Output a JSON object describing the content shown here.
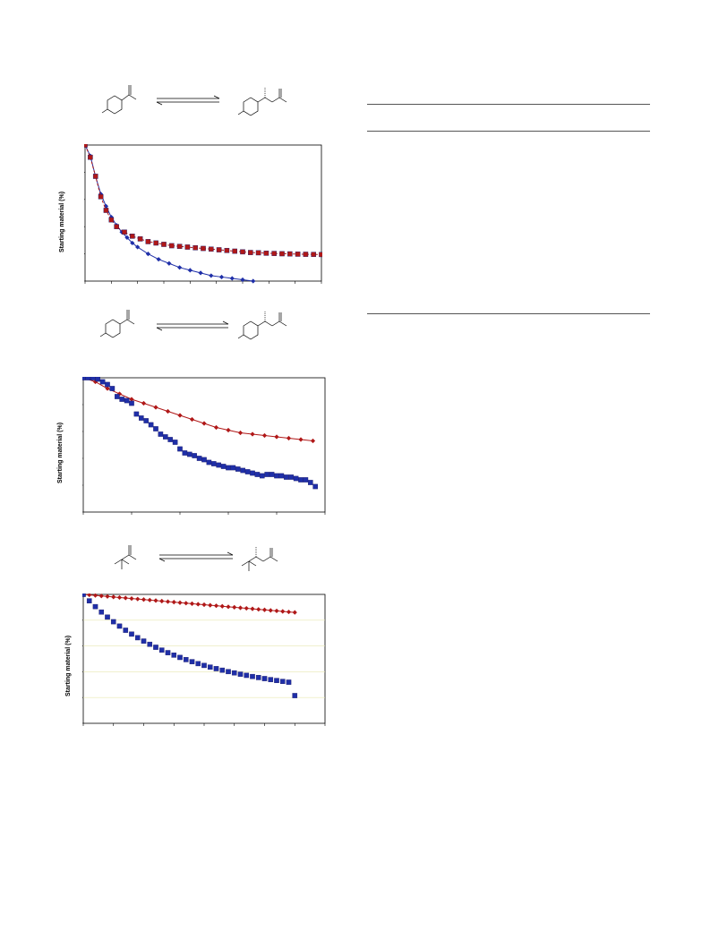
{
  "charts": [
    {
      "ylabel": "Starting material (%)"
    },
    {
      "ylabel": "Starting material (%)"
    },
    {
      "ylabel": "Starting material (%)"
    }
  ],
  "chart_data": [
    {
      "type": "line",
      "ylabel": "Starting material (%)",
      "xlim": [
        0,
        9
      ],
      "ylim": [
        0,
        100
      ],
      "grid": false,
      "series": [
        {
          "color": "#1f2fa8",
          "marker": "diamond",
          "line": "solid",
          "x": [
            0,
            0.2,
            0.4,
            0.6,
            0.8,
            1,
            1.2,
            1.4,
            1.6,
            1.8,
            2,
            2.4,
            2.8,
            3.2,
            3.6,
            4,
            4.4,
            4.8,
            5.2,
            5.6,
            6,
            6.4
          ],
          "y": [
            100,
            92,
            77,
            64,
            55,
            47,
            41,
            36,
            32,
            28,
            25,
            20,
            16,
            13,
            10,
            8,
            6,
            4,
            3,
            2,
            1,
            0
          ]
        },
        {
          "color": "#b01818",
          "marker": "square",
          "line": "dashed",
          "x": [
            0,
            0.2,
            0.4,
            0.6,
            0.8,
            1,
            1.2,
            1.5,
            1.8,
            2.1,
            2.4,
            2.7,
            3,
            3.3,
            3.6,
            3.9,
            4.2,
            4.5,
            4.8,
            5.1,
            5.4,
            5.7,
            6,
            6.3,
            6.6,
            6.9,
            7.2,
            7.5,
            7.8,
            8.1,
            8.4,
            8.7,
            9
          ],
          "y": [
            100,
            91,
            77,
            62,
            52,
            45,
            40,
            36,
            33,
            31,
            29,
            28,
            27,
            26,
            25.5,
            25,
            24.5,
            24,
            23.5,
            23,
            22.5,
            22,
            21.5,
            21,
            20.8,
            20.5,
            20.3,
            20.1,
            20,
            19.8,
            19.7,
            19.6,
            19.5
          ]
        }
      ]
    },
    {
      "type": "line",
      "ylabel": "Starting material (%)",
      "xlim": [
        0,
        5
      ],
      "ylim": [
        0,
        100
      ],
      "grid": false,
      "series": [
        {
          "color": "#b01818",
          "marker": "diamond",
          "line": "solid",
          "x": [
            0,
            0.25,
            0.5,
            0.75,
            1,
            1.25,
            1.5,
            1.75,
            2,
            2.25,
            2.5,
            2.75,
            3,
            3.25,
            3.5,
            3.75,
            4,
            4.25,
            4.5,
            4.75
          ],
          "y": [
            100,
            97,
            92,
            88,
            84,
            81,
            78,
            75,
            72,
            69,
            66,
            63,
            61,
            59,
            58,
            57,
            56,
            55,
            54,
            53
          ]
        },
        {
          "color": "#1f2fa8",
          "marker": "square",
          "line": "none",
          "x": [
            0,
            0.1,
            0.2,
            0.3,
            0.4,
            0.5,
            0.6,
            0.7,
            0.8,
            0.9,
            1,
            1.1,
            1.2,
            1.3,
            1.4,
            1.5,
            1.6,
            1.7,
            1.8,
            1.9,
            2,
            2.1,
            2.2,
            2.3,
            2.4,
            2.5,
            2.6,
            2.7,
            2.8,
            2.9,
            3,
            3.1,
            3.2,
            3.3,
            3.4,
            3.5,
            3.6,
            3.7,
            3.8,
            3.9,
            4,
            4.1,
            4.2,
            4.3,
            4.4,
            4.5,
            4.6,
            4.7,
            4.8
          ],
          "y": [
            100,
            100,
            100,
            99,
            97,
            95,
            92,
            86,
            84,
            83,
            81,
            73,
            70,
            68,
            65,
            62,
            58,
            56,
            54,
            52,
            47,
            44,
            43,
            42,
            40,
            39,
            37,
            36,
            35,
            34,
            33,
            33,
            32,
            31,
            30,
            29,
            28,
            27,
            28,
            28,
            27,
            27,
            26,
            26,
            25,
            24,
            24,
            22,
            19
          ]
        }
      ]
    },
    {
      "type": "line",
      "ylabel": "Starting material (%)",
      "xlim": [
        0,
        8
      ],
      "ylim": [
        0,
        100
      ],
      "grid": true,
      "series": [
        {
          "color": "#b01818",
          "marker": "diamond",
          "line": "solid",
          "x": [
            0,
            0.2,
            0.4,
            0.6,
            0.8,
            1,
            1.2,
            1.4,
            1.6,
            1.8,
            2,
            2.2,
            2.4,
            2.6,
            2.8,
            3,
            3.2,
            3.4,
            3.6,
            3.8,
            4,
            4.2,
            4.4,
            4.6,
            4.8,
            5,
            5.2,
            5.4,
            5.6,
            5.8,
            6,
            6.2,
            6.4,
            6.6,
            6.8,
            7
          ],
          "y": [
            100,
            99.6,
            99.2,
            98.8,
            98.4,
            98,
            97.6,
            97.2,
            96.8,
            96.4,
            96,
            95.6,
            95.2,
            94.8,
            94.4,
            94,
            93.6,
            93.2,
            92.8,
            92.4,
            92,
            91.6,
            91.2,
            90.8,
            90.4,
            90,
            89.6,
            89.2,
            88.8,
            88.4,
            88,
            87.6,
            87.2,
            86.8,
            86.4,
            86
          ]
        },
        {
          "color": "#1f2fa8",
          "marker": "square",
          "line": "none",
          "x": [
            0,
            0.2,
            0.4,
            0.6,
            0.8,
            1,
            1.2,
            1.4,
            1.6,
            1.8,
            2,
            2.2,
            2.4,
            2.6,
            2.8,
            3,
            3.2,
            3.4,
            3.6,
            3.8,
            4,
            4.2,
            4.4,
            4.6,
            4.8,
            5,
            5.2,
            5.4,
            5.6,
            5.8,
            6,
            6.2,
            6.4,
            6.6,
            6.8,
            7
          ],
          "y": [
            100,
            95,
            90.5,
            86.3,
            82.4,
            78.8,
            75.4,
            72.2,
            69.2,
            66.4,
            63.8,
            61.3,
            59,
            56.8,
            54.8,
            52.9,
            51.1,
            49.4,
            47.8,
            46.3,
            44.9,
            43.6,
            42.4,
            41.2,
            40.1,
            39.1,
            38.1,
            37.2,
            36.3,
            35.5,
            34.7,
            33.9,
            33.2,
            32.5,
            31.9,
            21.5
          ]
        }
      ]
    }
  ]
}
